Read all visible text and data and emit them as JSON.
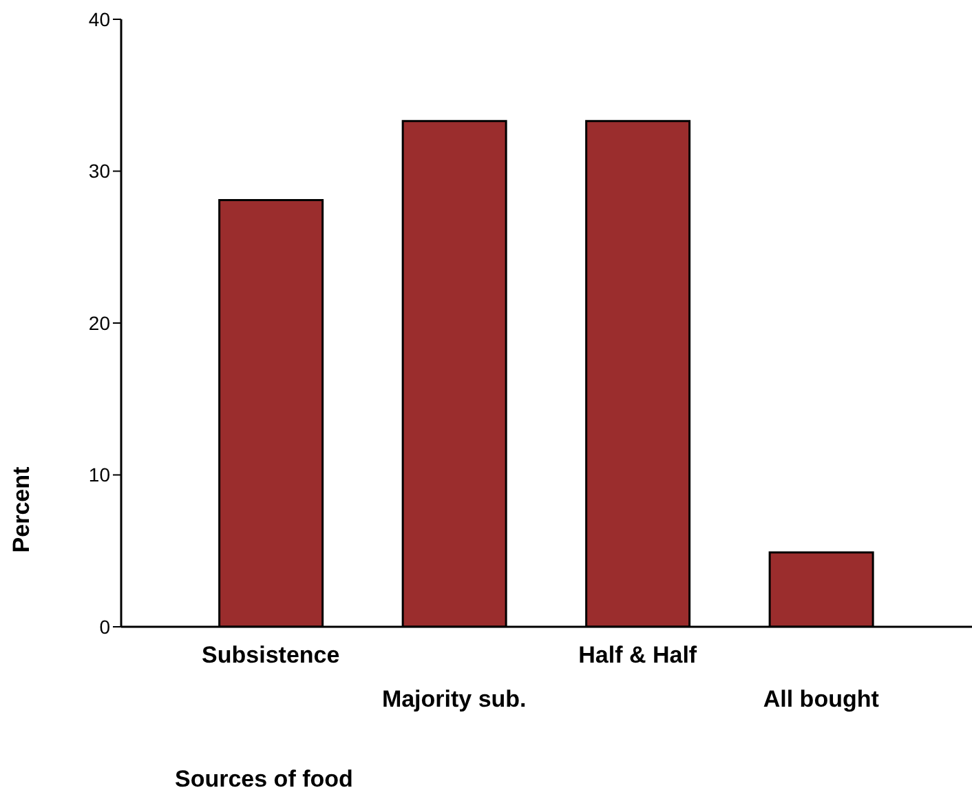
{
  "chart_data": {
    "type": "bar",
    "xlabel": "Sources of food",
    "ylabel": "Percent",
    "categories": [
      "Subsistence",
      "Majority sub.",
      "Half & Half",
      "All bought"
    ],
    "values": [
      28.1,
      33.3,
      33.3,
      4.9
    ],
    "color": "#9b2d2d",
    "ylim": [
      0,
      40
    ],
    "yticks": [
      0,
      10,
      20,
      30,
      40
    ],
    "grid": false,
    "legend": false
  }
}
